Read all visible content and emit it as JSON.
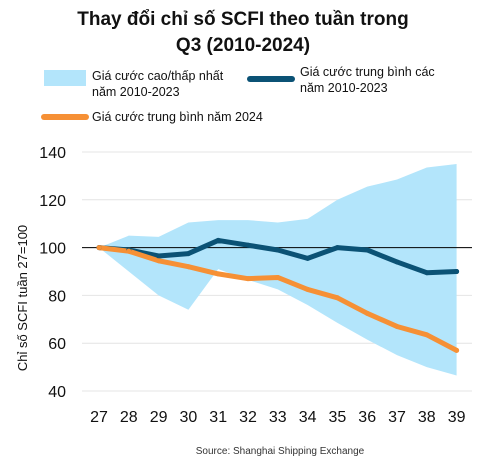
{
  "chart_data": {
    "type": "line",
    "title_line1": "Thay đổi chỉ số SCFI theo tuần trong",
    "title_line2": "Q3 (2010-2024)",
    "ylabel": "Chỉ số SCFI tuần 27=100",
    "source": "Source: Shanghai Shipping Exchange",
    "x": [
      27,
      28,
      29,
      30,
      31,
      32,
      33,
      34,
      35,
      36,
      37,
      38,
      39
    ],
    "ylim": [
      40,
      140
    ],
    "yticks": [
      40,
      60,
      80,
      100,
      120,
      140
    ],
    "reference_line": 100,
    "legend": {
      "range_line1": "Giá cước cao/thấp nhất",
      "range_line2": "năm 2010-2023",
      "avg_line1": "Giá cước trung bình các",
      "avg_line2": "năm 2010-2023",
      "y2024": "Giá cước trung bình năm 2024"
    },
    "band": {
      "high": [
        100,
        105,
        104.5,
        110.5,
        111.5,
        111.5,
        110.5,
        112,
        120,
        125.5,
        128.5,
        133.5,
        135
      ],
      "low": [
        100,
        90,
        80,
        74,
        91,
        86.5,
        82.5,
        76,
        68.5,
        61.5,
        55,
        50,
        46.5
      ]
    },
    "series": [
      {
        "values": [
          100,
          99,
          96.5,
          97.5,
          103,
          101,
          99,
          95.5,
          100,
          99,
          94,
          89.5,
          90
        ]
      },
      {
        "values": [
          100,
          98.5,
          94.5,
          92,
          89,
          87,
          87.5,
          82.5,
          79,
          72.5,
          67,
          63.5,
          57
        ]
      }
    ],
    "colors": {
      "band": "#b3e5fb",
      "avg": "#0b5275",
      "y2024": "#f69035",
      "reference": "#000000",
      "text": "#111111"
    }
  }
}
